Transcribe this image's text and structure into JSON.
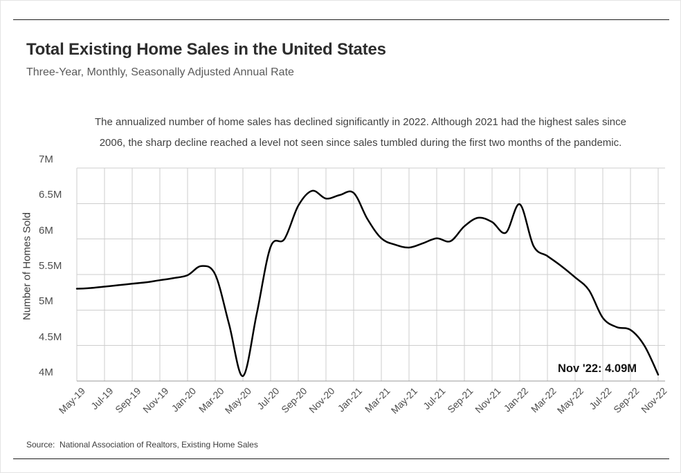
{
  "chart_data": {
    "type": "line",
    "title": "Total Existing Home Sales in the United States",
    "subtitle": "Three-Year, Monthly, Seasonally Adjusted Annual Rate",
    "annotation_lines": [
      "The annualized number of home sales has declined significantly in 2022. Although 2021 had the highest sales since",
      "2006, the sharp decline reached a level not seen since sales tumbled during the first two months of the pandemic."
    ],
    "ylabel": "Number of Homes Sold",
    "xlabel": "",
    "ylim": [
      4,
      7
    ],
    "ytick_values": [
      7,
      6.5,
      6,
      5.5,
      5,
      4.5,
      4
    ],
    "ytick_labels": [
      "7M",
      "6.5M",
      "6M",
      "5.5M",
      "5M",
      "4.5M",
      "4M"
    ],
    "xtick_every": 2,
    "grid": true,
    "line_color": "#000000",
    "grid_color": "#cdcdcd",
    "baseline_color": "#9a9a9a",
    "x": [
      "May-19",
      "Jun-19",
      "Jul-19",
      "Aug-19",
      "Sep-19",
      "Oct-19",
      "Nov-19",
      "Dec-19",
      "Jan-20",
      "Feb-20",
      "Mar-20",
      "Apr-20",
      "May-20",
      "Jun-20",
      "Jul-20",
      "Aug-20",
      "Sep-20",
      "Oct-20",
      "Nov-20",
      "Dec-20",
      "Jan-21",
      "Feb-21",
      "Mar-21",
      "Apr-21",
      "May-21",
      "Jun-21",
      "Jul-21",
      "Aug-21",
      "Sep-21",
      "Oct-21",
      "Nov-21",
      "Dec-21",
      "Jan-22",
      "Feb-22",
      "Mar-22",
      "Apr-22",
      "May-22",
      "Jun-22",
      "Jul-22",
      "Aug-22",
      "Sep-22",
      "Oct-22",
      "Nov-22"
    ],
    "values": [
      5.3,
      5.31,
      5.33,
      5.35,
      5.37,
      5.39,
      5.42,
      5.45,
      5.49,
      5.62,
      5.5,
      4.8,
      4.07,
      4.95,
      5.89,
      6.0,
      6.47,
      6.68,
      6.57,
      6.62,
      6.65,
      6.28,
      6.01,
      5.92,
      5.88,
      5.94,
      6.01,
      5.97,
      6.18,
      6.3,
      6.24,
      6.09,
      6.49,
      5.9,
      5.76,
      5.62,
      5.46,
      5.28,
      4.89,
      4.76,
      4.72,
      4.5,
      4.09
    ],
    "end_label": "Nov '22: 4.09M",
    "source": "Source:  National Association of Realtors, Existing Home Sales"
  }
}
